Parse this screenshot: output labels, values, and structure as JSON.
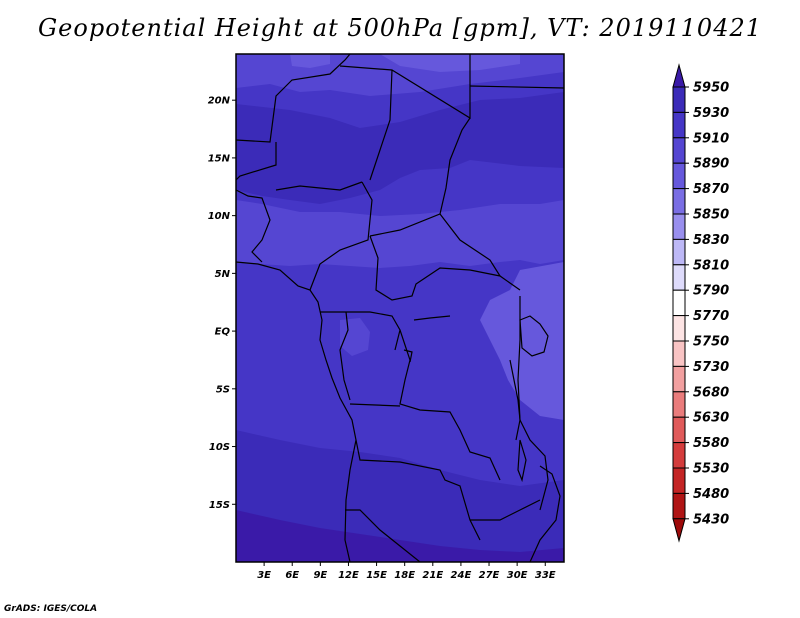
{
  "title": "Geopotential Height at 500hPa [gpm], VT: 2019110421",
  "footer": "GrADS: IGES/COLA",
  "map": {
    "lon_range": [
      0,
      35
    ],
    "lat_range": [
      -20,
      24
    ],
    "lat_ticks": [
      {
        "value": 20,
        "label": "20N"
      },
      {
        "value": 15,
        "label": "15N"
      },
      {
        "value": 10,
        "label": "10N"
      },
      {
        "value": 5,
        "label": "5N"
      },
      {
        "value": 0,
        "label": "EQ"
      },
      {
        "value": -5,
        "label": "5S"
      },
      {
        "value": -10,
        "label": "10S"
      },
      {
        "value": -15,
        "label": "15S"
      }
    ],
    "lon_ticks": [
      {
        "value": 3,
        "label": "3E"
      },
      {
        "value": 6,
        "label": "6E"
      },
      {
        "value": 9,
        "label": "9E"
      },
      {
        "value": 12,
        "label": "12E"
      },
      {
        "value": 15,
        "label": "15E"
      },
      {
        "value": 18,
        "label": "18E"
      },
      {
        "value": 21,
        "label": "21E"
      },
      {
        "value": 24,
        "label": "24E"
      },
      {
        "value": 27,
        "label": "27E"
      },
      {
        "value": 30,
        "label": "30E"
      },
      {
        "value": 33,
        "label": "33E"
      }
    ]
  },
  "colorbar": {
    "levels": [
      "5950",
      "5930",
      "5910",
      "5890",
      "5870",
      "5850",
      "5830",
      "5810",
      "5790",
      "5770",
      "5750",
      "5730",
      "5680",
      "5630",
      "5580",
      "5530",
      "5480",
      "5430"
    ],
    "colors": [
      "#3a1aa8",
      "#3b2bb8",
      "#4536c6",
      "#5546d2",
      "#6658dc",
      "#7a6ee4",
      "#998fee",
      "#bdb8f6",
      "#dedbfb",
      "#ffffff",
      "#fde4e4",
      "#f9c4c4",
      "#f2a0a0",
      "#ea7c7c",
      "#e05a5a",
      "#d43c3c",
      "#c42525",
      "#b01515",
      "#9e0a0a"
    ]
  }
}
